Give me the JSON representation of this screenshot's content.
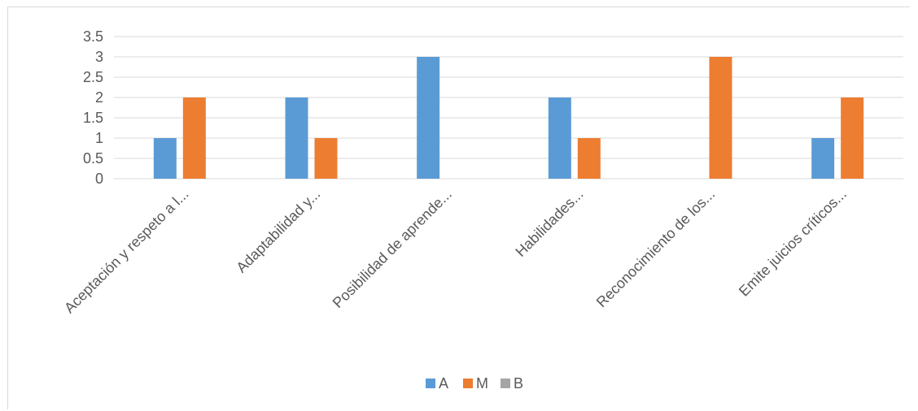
{
  "chart_data": {
    "type": "bar",
    "categories": [
      "Aceptación y respeto a l...",
      "Adaptabilidad y...",
      "Posibilidad de aprende...",
      "Habilidades...",
      "Reconocimiento de los...",
      "Emite juicios críticos..."
    ],
    "series": [
      {
        "name": "A",
        "color": "#5b9bd5",
        "values": [
          1,
          2,
          3,
          2,
          0,
          1
        ]
      },
      {
        "name": "M",
        "color": "#ed7d31",
        "values": [
          2,
          1,
          0,
          1,
          3,
          2
        ]
      },
      {
        "name": "B",
        "color": "#a5a5a5",
        "values": [
          0,
          0,
          0,
          0,
          0,
          0
        ]
      }
    ],
    "ylim": [
      0,
      3.5
    ],
    "yticks": [
      "0",
      "0.5",
      "1",
      "1.5",
      "2",
      "2.5",
      "3",
      "3.5"
    ],
    "title": "",
    "xlabel": "",
    "ylabel": "",
    "grid": true,
    "legend": "bottom"
  }
}
